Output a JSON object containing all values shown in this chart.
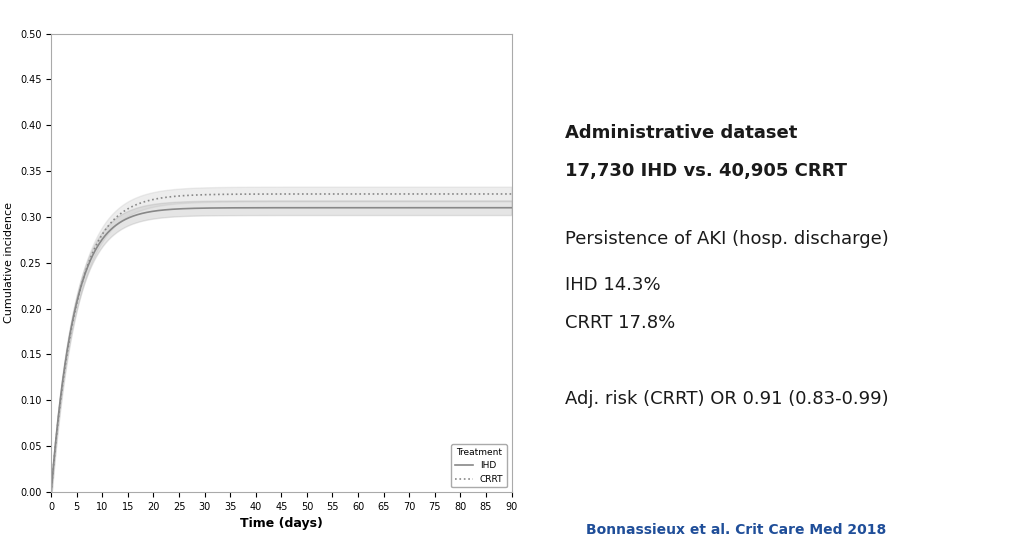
{
  "title": "",
  "xlabel": "Time (days)",
  "ylabel": "Cumulative incidence",
  "xlim": [
    0,
    90
  ],
  "ylim": [
    0,
    0.5
  ],
  "yticks": [
    0.0,
    0.05,
    0.1,
    0.15,
    0.2,
    0.25,
    0.3,
    0.35,
    0.4,
    0.45,
    0.5
  ],
  "xticks": [
    0,
    5,
    10,
    15,
    20,
    25,
    30,
    35,
    40,
    45,
    50,
    55,
    60,
    65,
    70,
    75,
    80,
    85,
    90
  ],
  "line_color_IHD": "#888888",
  "line_color_CRRT": "#888888",
  "background_color": "#ffffff",
  "plot_bg_color": "#ffffff",
  "info_box_color": "#aad7e8",
  "info_box_text_line1": "Administrative dataset",
  "info_box_text_line2": "17,730 IHD vs. 40,905 CRRT",
  "info_box_text_line3": "",
  "info_box_text_line4": "Persistence of AKI (hosp. discharge)",
  "info_box_text_line5": "IHD 14.3%",
  "info_box_text_line6": "CRRT 17.8%",
  "info_box_text_line7": "",
  "info_box_text_line8": "Adj. risk (CRRT) OR 0.91 (0.83-0.99)",
  "citation": "Bonnassieux et al. Crit Care Med 2018",
  "citation_color": "#1f4e99",
  "legend_title": "Treatment",
  "legend_IHD": "IHD",
  "legend_CRRT": "CRRT"
}
